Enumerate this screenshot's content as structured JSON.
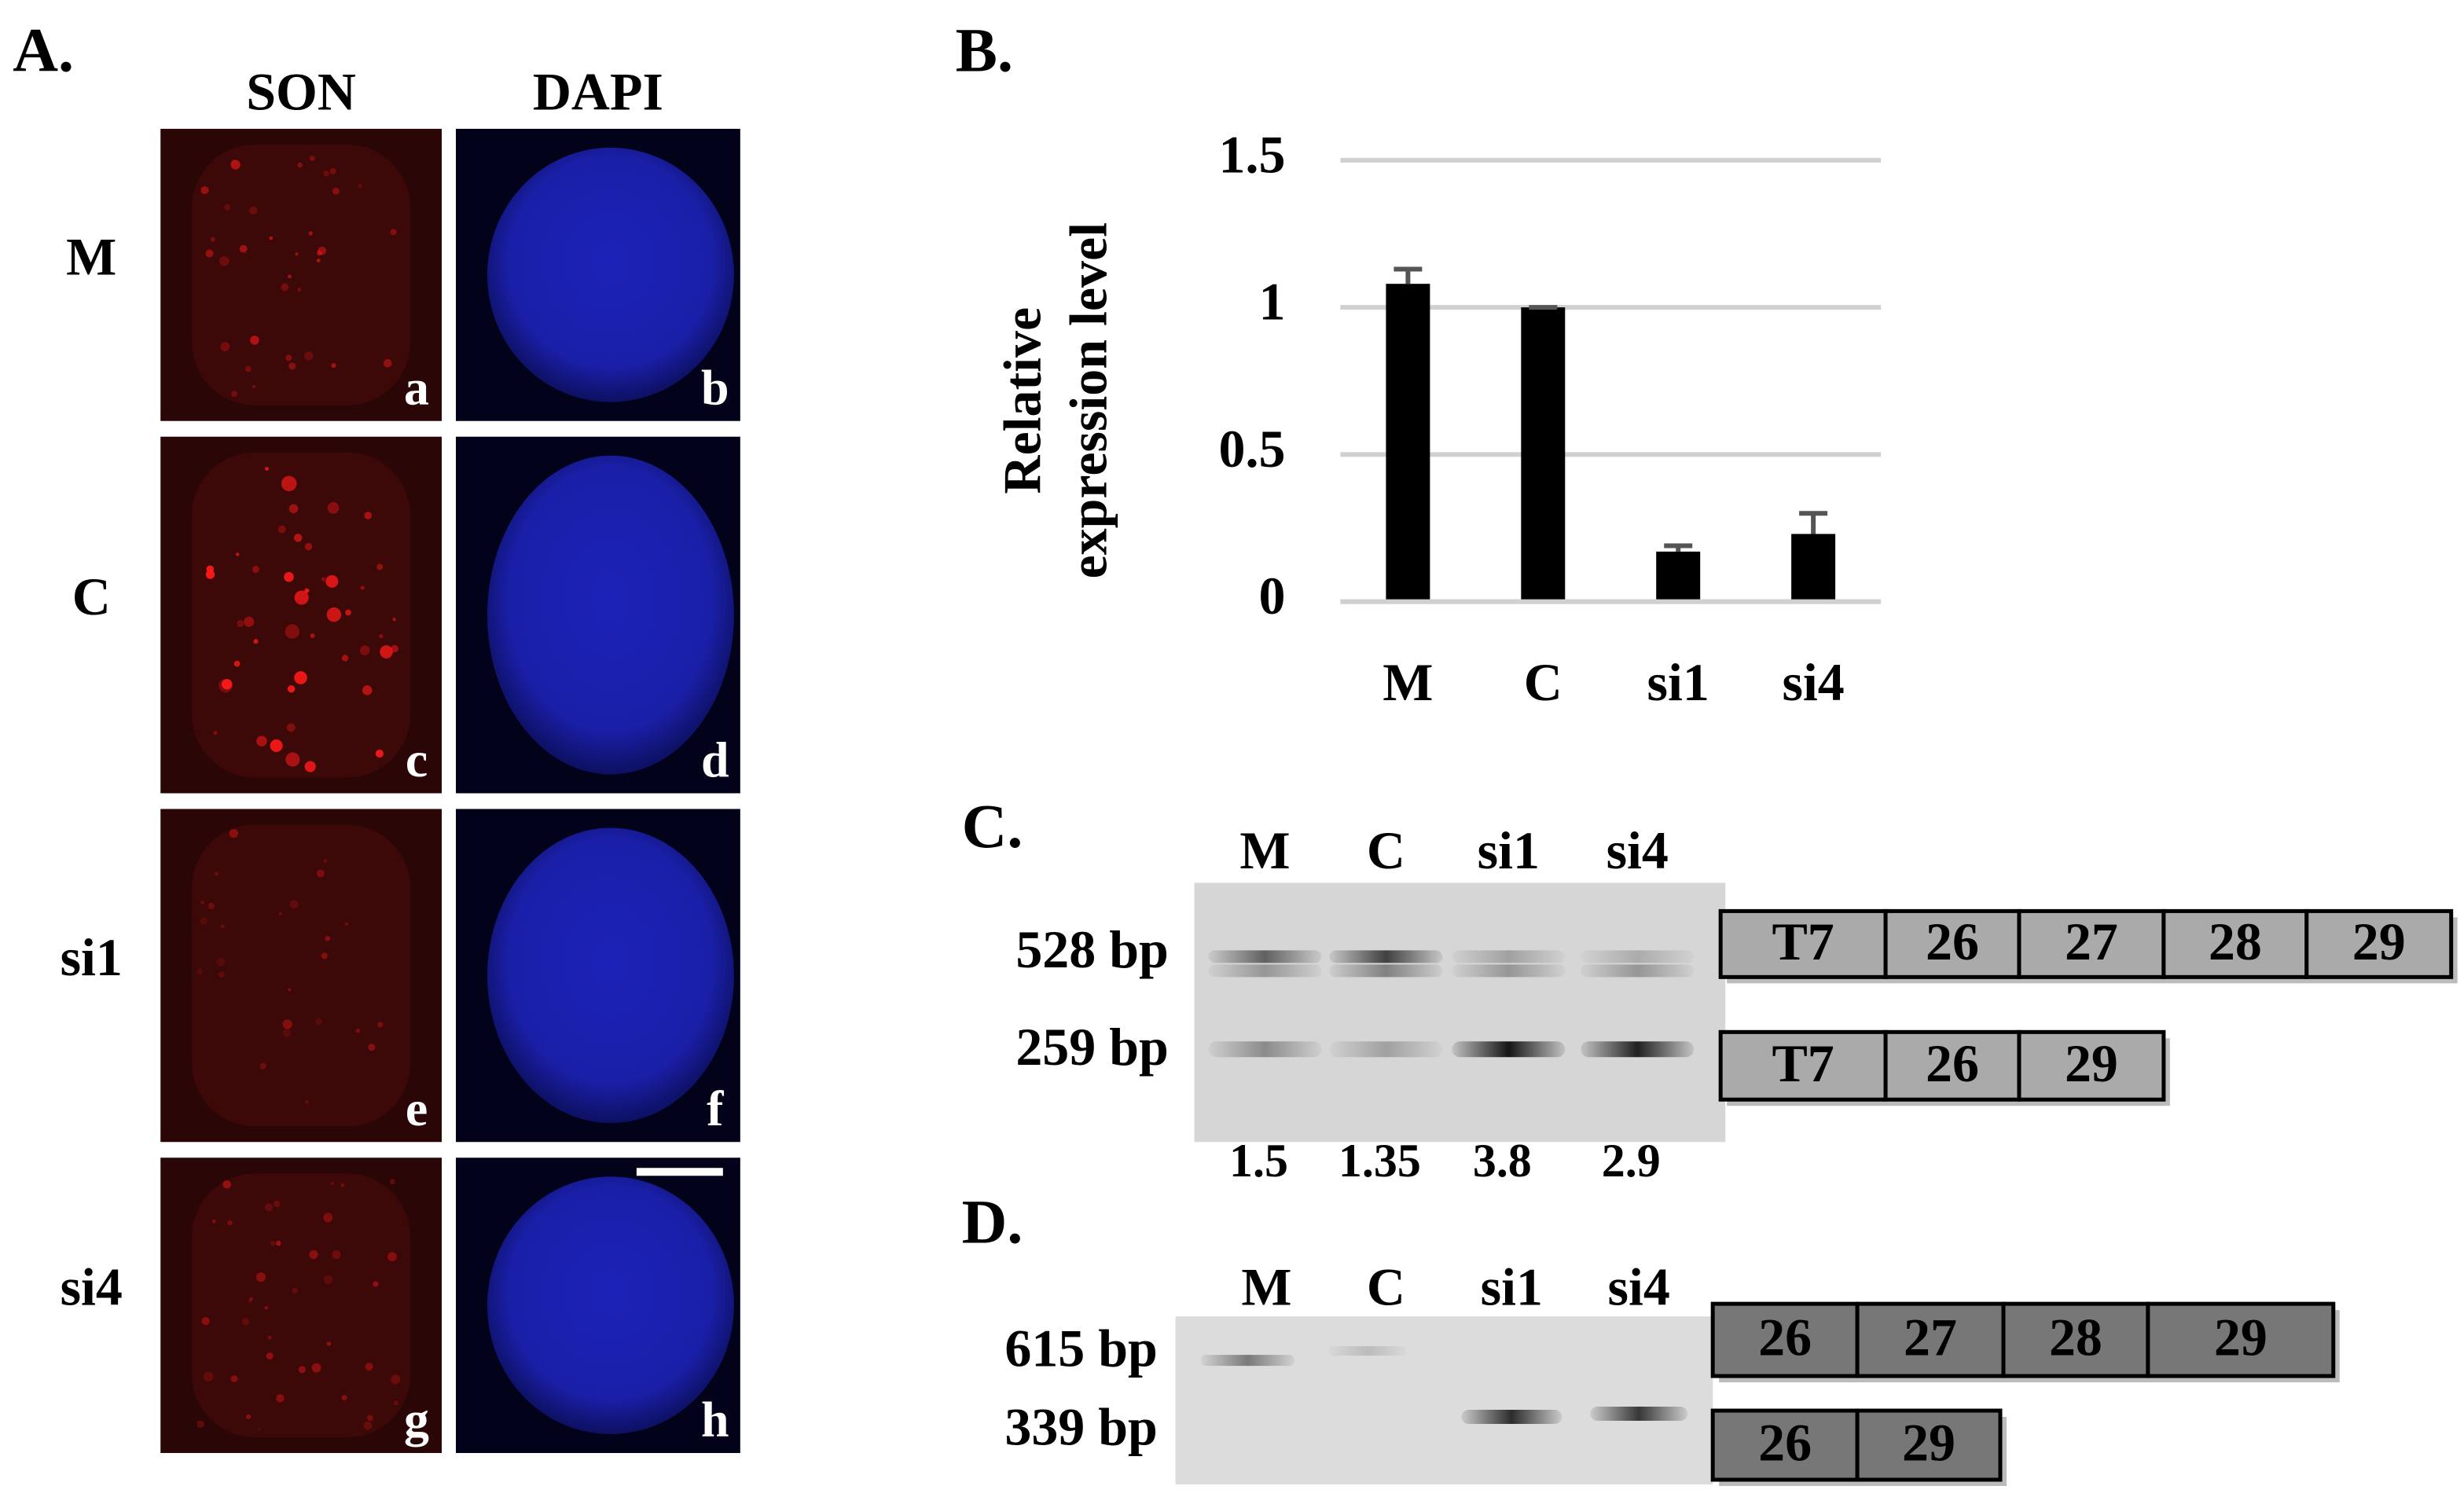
{
  "panel_a": {
    "label": "A.",
    "columns": [
      "SON",
      "DAPI"
    ],
    "rows": [
      "M",
      "C",
      "si1",
      "si4"
    ],
    "image_letters": [
      "a",
      "b",
      "c",
      "d",
      "e",
      "f",
      "g",
      "h"
    ]
  },
  "chart_data": {
    "type": "bar",
    "label": "B.",
    "ylabel_lines": [
      "Relative",
      "expression level"
    ],
    "categories": [
      "M",
      "C",
      "si1",
      "si4"
    ],
    "values": [
      1.08,
      1.0,
      0.17,
      0.23
    ],
    "errors": [
      0.05,
      0.0,
      0.02,
      0.07
    ],
    "color": "#000000",
    "error_color": "#555555",
    "ylim": [
      0,
      1.5
    ],
    "yticks": [
      0,
      0.5,
      1,
      1.5
    ],
    "grid": true
  },
  "panel_c": {
    "label": "C.",
    "lanes": [
      "M",
      "C",
      "si1",
      "si4"
    ],
    "bands": [
      "528 bp",
      "259 bp"
    ],
    "ratios": [
      1.5,
      1.35,
      3.8,
      2.9
    ],
    "exons": [
      [
        "T7",
        "26",
        "27",
        "28",
        "29"
      ],
      [
        "T7",
        "26",
        "29"
      ]
    ]
  },
  "panel_d": {
    "label": "D.",
    "lanes": [
      "M",
      "C",
      "si1",
      "si4"
    ],
    "bands": [
      "615 bp",
      "339 bp"
    ],
    "exons": [
      [
        "26",
        "27",
        "28",
        "29"
      ],
      [
        "26",
        "29"
      ]
    ]
  }
}
